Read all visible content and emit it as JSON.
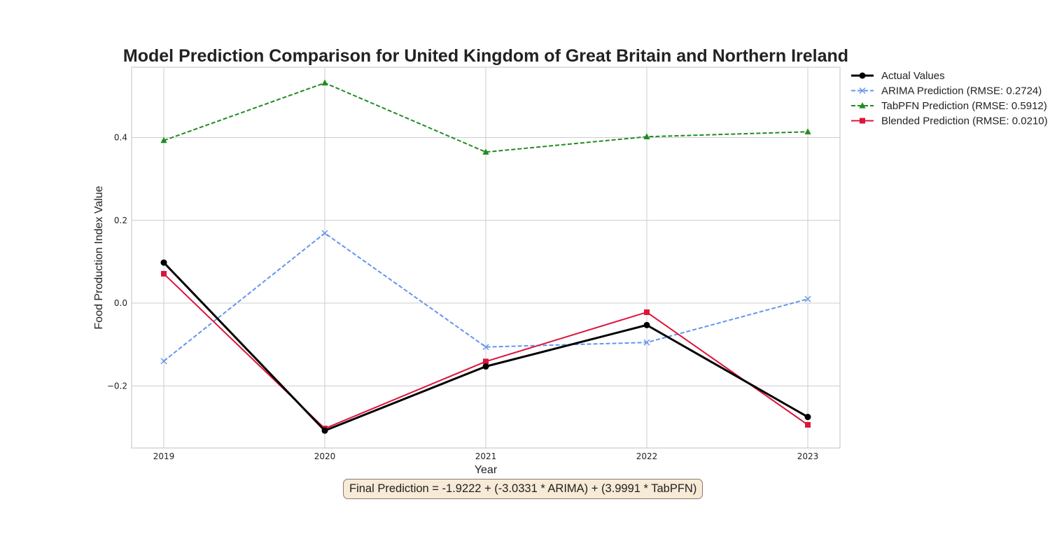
{
  "chart_data": {
    "type": "line",
    "title": "Model Prediction Comparison for United Kingdom of Great Britain and Northern Ireland",
    "xlabel": "Year",
    "ylabel": "Food Production Index Value",
    "categories": [
      "2019",
      "2020",
      "2021",
      "2022",
      "2023"
    ],
    "yticks": [
      -0.2,
      0.0,
      0.2,
      0.4
    ],
    "ytick_labels": [
      "−0.2",
      "0.0",
      "0.2",
      "0.4"
    ],
    "ylim": [
      -0.35,
      0.57
    ],
    "grid": true,
    "legend_position": "outside-top-right",
    "series": [
      {
        "name": "Actual Values",
        "values": [
          0.098,
          -0.308,
          -0.153,
          -0.053,
          -0.275
        ],
        "color": "#000000",
        "dash": "solid",
        "marker": "circle"
      },
      {
        "name": "ARIMA Prediction (RMSE: 0.2724)",
        "values": [
          -0.14,
          0.169,
          -0.106,
          -0.095,
          0.01
        ],
        "color": "#6495ED",
        "dash": "dashed",
        "marker": "x"
      },
      {
        "name": "TabPFN Prediction (RMSE: 0.5912)",
        "values": [
          0.393,
          0.532,
          0.365,
          0.402,
          0.414
        ],
        "color": "#228B22",
        "dash": "dashed",
        "marker": "triangle"
      },
      {
        "name": "Blended Prediction (RMSE: 0.0210)",
        "values": [
          0.071,
          -0.303,
          -0.141,
          -0.022,
          -0.294
        ],
        "color": "#DC143C",
        "dash": "solid",
        "marker": "square"
      }
    ],
    "annotation": "Final Prediction = -1.9222 + (-3.0331 * ARIMA) + (3.9991 * TabPFN)"
  }
}
